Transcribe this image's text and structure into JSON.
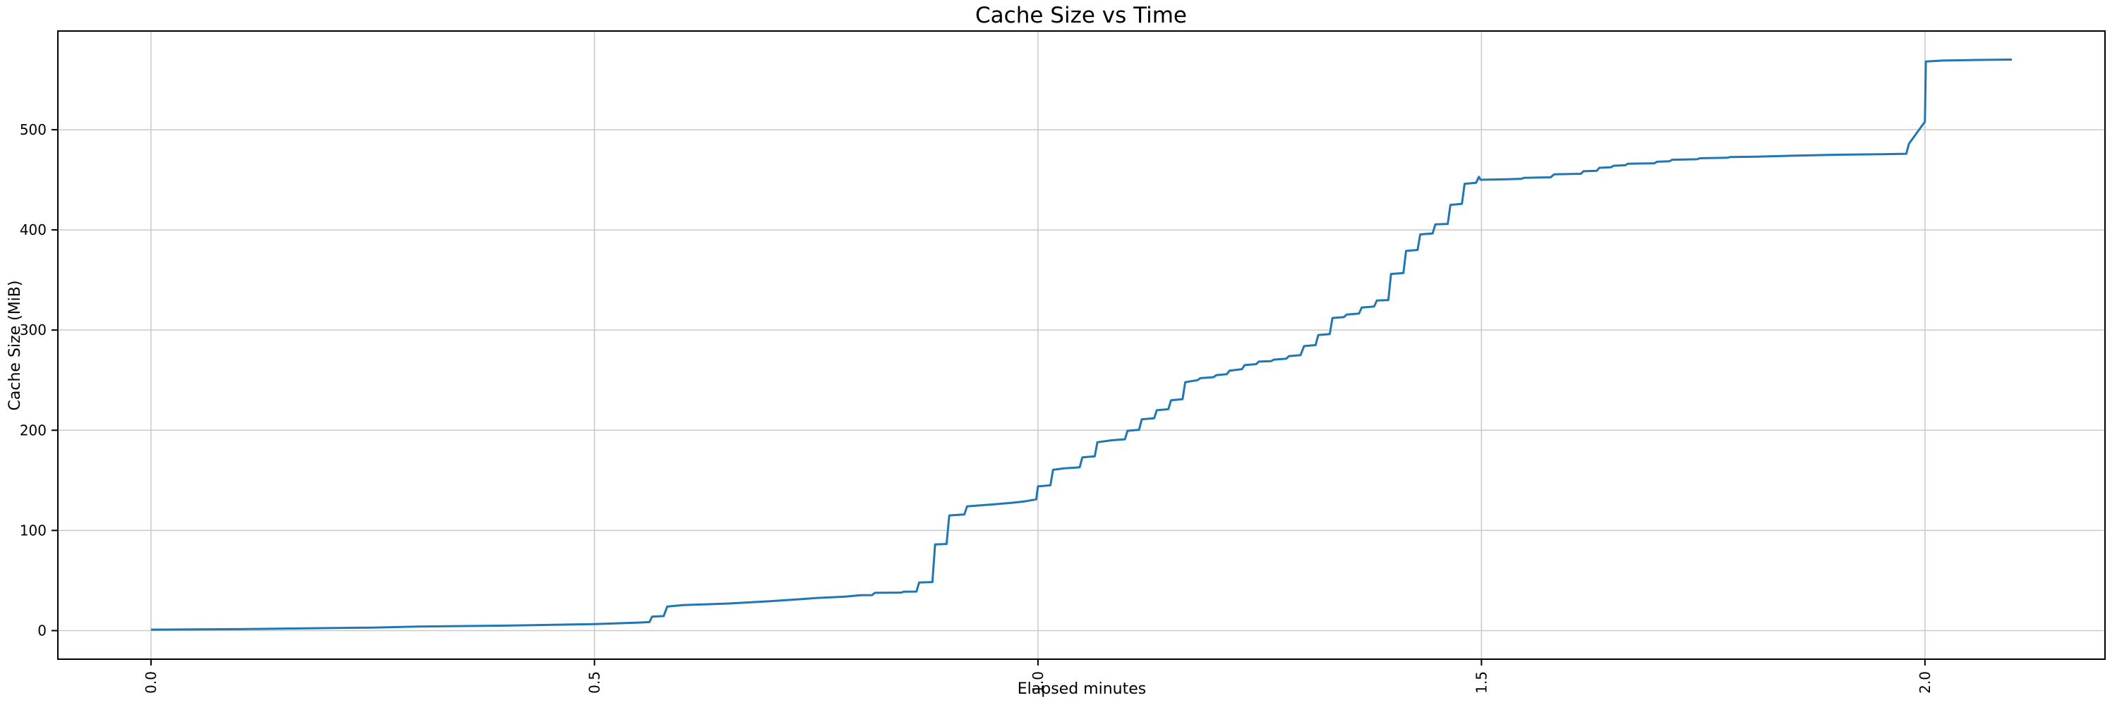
{
  "chart_data": {
    "type": "line",
    "title": "Cache Size vs Time",
    "xlabel": "Elapsed minutes",
    "ylabel": "Cache Size (MiB)",
    "x_tick_labels": [
      "0.0",
      "0.5",
      "1.0",
      "1.5",
      "2.0"
    ],
    "x_tick_values": [
      0.0,
      0.5,
      1.0,
      1.5,
      2.0
    ],
    "y_tick_labels": [
      "0",
      "100",
      "200",
      "300",
      "400",
      "500"
    ],
    "y_tick_values": [
      0,
      100,
      200,
      300,
      400,
      500
    ],
    "xlim": [
      -0.105,
      2.203
    ],
    "ylim": [
      -28.5,
      598.5
    ],
    "grid": true,
    "legend_position": "none",
    "line_color": "#1f77b4",
    "grid_color": "#c9c9c9",
    "spine_color": "#000000",
    "series": [
      {
        "name": "Cache Size",
        "points": [
          [
            0.0,
            1
          ],
          [
            0.1,
            1.5
          ],
          [
            0.2,
            2.5
          ],
          [
            0.25,
            3
          ],
          [
            0.3,
            4
          ],
          [
            0.4,
            5
          ],
          [
            0.5,
            6.5
          ],
          [
            0.55,
            8
          ],
          [
            0.562,
            8.5
          ],
          [
            0.565,
            14
          ],
          [
            0.578,
            14.5
          ],
          [
            0.582,
            24
          ],
          [
            0.6,
            25.5
          ],
          [
            0.65,
            27
          ],
          [
            0.7,
            29.5
          ],
          [
            0.716,
            30.5
          ],
          [
            0.734,
            31.5
          ],
          [
            0.75,
            32.5
          ],
          [
            0.783,
            34
          ],
          [
            0.8,
            35.3
          ],
          [
            0.813,
            35.5
          ],
          [
            0.816,
            37.7
          ],
          [
            0.846,
            38
          ],
          [
            0.849,
            38.9
          ],
          [
            0.863,
            39
          ],
          [
            0.866,
            48
          ],
          [
            0.881,
            48.5
          ],
          [
            0.884,
            86
          ],
          [
            0.897,
            86.5
          ],
          [
            0.9,
            115
          ],
          [
            0.917,
            116
          ],
          [
            0.92,
            124
          ],
          [
            0.95,
            126
          ],
          [
            0.97,
            127.5
          ],
          [
            0.985,
            129
          ],
          [
            0.998,
            131
          ],
          [
            1.0,
            144
          ],
          [
            1.014,
            145
          ],
          [
            1.017,
            160.5
          ],
          [
            1.03,
            162
          ],
          [
            1.047,
            163
          ],
          [
            1.05,
            173
          ],
          [
            1.064,
            174
          ],
          [
            1.067,
            188
          ],
          [
            1.083,
            190
          ],
          [
            1.098,
            191
          ],
          [
            1.101,
            199.5
          ],
          [
            1.114,
            200.5
          ],
          [
            1.117,
            211
          ],
          [
            1.131,
            212
          ],
          [
            1.134,
            220
          ],
          [
            1.147,
            221
          ],
          [
            1.15,
            230
          ],
          [
            1.163,
            231
          ],
          [
            1.166,
            248
          ],
          [
            1.18,
            250
          ],
          [
            1.183,
            252
          ],
          [
            1.198,
            253
          ],
          [
            1.201,
            255
          ],
          [
            1.213,
            256
          ],
          [
            1.216,
            259.5
          ],
          [
            1.23,
            261
          ],
          [
            1.233,
            265
          ],
          [
            1.246,
            266
          ],
          [
            1.249,
            268.5
          ],
          [
            1.263,
            269
          ],
          [
            1.266,
            270.5
          ],
          [
            1.28,
            271.5
          ],
          [
            1.283,
            274
          ],
          [
            1.296,
            275
          ],
          [
            1.3,
            284
          ],
          [
            1.313,
            285
          ],
          [
            1.316,
            295
          ],
          [
            1.329,
            296
          ],
          [
            1.332,
            312
          ],
          [
            1.345,
            313
          ],
          [
            1.348,
            315.5
          ],
          [
            1.362,
            316.5
          ],
          [
            1.365,
            322.5
          ],
          [
            1.379,
            323.5
          ],
          [
            1.382,
            329.5
          ],
          [
            1.395,
            330
          ],
          [
            1.398,
            356
          ],
          [
            1.412,
            357
          ],
          [
            1.415,
            379
          ],
          [
            1.428,
            380
          ],
          [
            1.431,
            395.5
          ],
          [
            1.445,
            396.5
          ],
          [
            1.448,
            405.5
          ],
          [
            1.462,
            406
          ],
          [
            1.465,
            425
          ],
          [
            1.478,
            426
          ],
          [
            1.481,
            446
          ],
          [
            1.494,
            447
          ],
          [
            1.497,
            453
          ],
          [
            1.499,
            450
          ],
          [
            1.53,
            450.5
          ],
          [
            1.545,
            451
          ],
          [
            1.548,
            452
          ],
          [
            1.578,
            452.5
          ],
          [
            1.582,
            455.5
          ],
          [
            1.612,
            456
          ],
          [
            1.615,
            458.5
          ],
          [
            1.63,
            459
          ],
          [
            1.633,
            462
          ],
          [
            1.646,
            462.5
          ],
          [
            1.649,
            464
          ],
          [
            1.662,
            464.5
          ],
          [
            1.665,
            466
          ],
          [
            1.695,
            466.5
          ],
          [
            1.698,
            468
          ],
          [
            1.712,
            468.5
          ],
          [
            1.715,
            470
          ],
          [
            1.743,
            470.5
          ],
          [
            1.746,
            471.5
          ],
          [
            1.777,
            472
          ],
          [
            1.78,
            472.7
          ],
          [
            1.81,
            473
          ],
          [
            1.85,
            474
          ],
          [
            1.9,
            475
          ],
          [
            1.95,
            475.5
          ],
          [
            1.979,
            476
          ],
          [
            1.982,
            486
          ],
          [
            2.0,
            508
          ],
          [
            2.001,
            568
          ],
          [
            2.02,
            569
          ],
          [
            2.05,
            569.5
          ],
          [
            2.098,
            570
          ]
        ]
      }
    ]
  }
}
